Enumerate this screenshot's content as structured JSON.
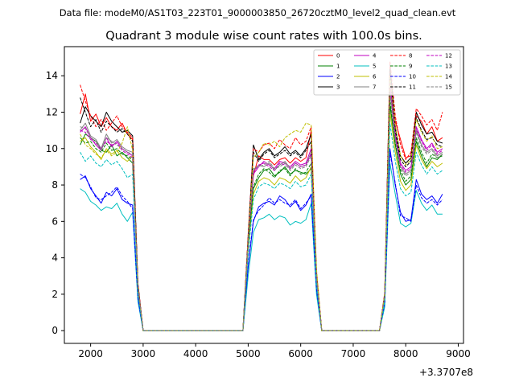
{
  "chart_data": {
    "type": "line",
    "suptitle": "Data file: modeM0/AS1T03_223T01_9000003850_26720cztM0_level2_quad_clean.evt",
    "title": "Quadrant 3 module wise count rates with 100.0s bins.",
    "xlabel": "",
    "ylabel": "",
    "x_offset_label": "+3.3707e8",
    "xlim": [
      1500,
      9100
    ],
    "ylim": [
      -0.7,
      15.6
    ],
    "xticks": [
      2000,
      3000,
      4000,
      5000,
      6000,
      7000,
      8000,
      9000
    ],
    "xtick_labels": [
      "2000",
      "3000",
      "4000",
      "5000",
      "6000",
      "7000",
      "8000",
      "9000"
    ],
    "yticks": [
      0,
      2,
      4,
      6,
      8,
      10,
      12,
      14
    ],
    "ytick_labels": [
      "0",
      "2",
      "4",
      "6",
      "8",
      "10",
      "12",
      "14"
    ],
    "legend_location": "top-right",
    "legend_columns": 4,
    "x": [
      1800,
      1900,
      2000,
      2100,
      2200,
      2300,
      2400,
      2500,
      2600,
      2700,
      2800,
      2900,
      3000,
      3100,
      3200,
      3300,
      3400,
      3500,
      3600,
      3700,
      3800,
      3900,
      4000,
      4100,
      4200,
      4300,
      4400,
      4500,
      4600,
      4700,
      4800,
      4900,
      5000,
      5100,
      5200,
      5300,
      5400,
      5500,
      5600,
      5700,
      5800,
      5900,
      6000,
      6100,
      6200,
      6300,
      6400,
      6500,
      6600,
      6700,
      6800,
      6900,
      7000,
      7100,
      7200,
      7300,
      7400,
      7500,
      7600,
      7700,
      7800,
      7900,
      8000,
      8100,
      8200,
      8300,
      8400,
      8500,
      8600,
      8700
    ],
    "series": [
      {
        "name": "0",
        "color": "#ff0000",
        "dash": "solid",
        "values": [
          11.9,
          13.0,
          11.5,
          11.9,
          11.2,
          11.7,
          11.2,
          11.0,
          11.4,
          10.8,
          10.5,
          2.5,
          0,
          0,
          0,
          0,
          0,
          0,
          0,
          0,
          0,
          0,
          0,
          0,
          0,
          0,
          0,
          0,
          0,
          0,
          0,
          0,
          5.0,
          8.5,
          9.6,
          9.4,
          9.4,
          9.1,
          9.4,
          9.5,
          9.2,
          9.5,
          9.3,
          9.5,
          11.0,
          3.2,
          0,
          0,
          0,
          0,
          0,
          0,
          0,
          0,
          0,
          0,
          0,
          0,
          2.0,
          13.5,
          11.5,
          10.5,
          9.5,
          9.6,
          11.8,
          11.5,
          10.8,
          11.2,
          10.4,
          10.6
        ]
      },
      {
        "name": "1",
        "color": "#008000",
        "dash": "solid",
        "values": [
          10.2,
          10.8,
          10.6,
          10.4,
          9.9,
          9.8,
          10.2,
          9.6,
          9.8,
          9.5,
          9.2,
          2.2,
          0,
          0,
          0,
          0,
          0,
          0,
          0,
          0,
          0,
          0,
          0,
          0,
          0,
          0,
          0,
          0,
          0,
          0,
          0,
          0,
          4.6,
          7.8,
          8.4,
          8.8,
          8.9,
          8.5,
          8.7,
          9.0,
          8.6,
          8.8,
          8.7,
          8.6,
          8.9,
          2.8,
          0,
          0,
          0,
          0,
          0,
          0,
          0,
          0,
          0,
          0,
          0,
          0,
          1.8,
          12.4,
          10.2,
          8.6,
          8.0,
          8.3,
          10.4,
          9.6,
          9.0,
          9.5,
          9.4,
          9.7
        ]
      },
      {
        "name": "2",
        "color": "#0000ff",
        "dash": "solid",
        "values": [
          8.3,
          8.5,
          7.8,
          7.4,
          7.0,
          7.6,
          7.4,
          7.8,
          7.2,
          7.0,
          6.9,
          1.8,
          0,
          0,
          0,
          0,
          0,
          0,
          0,
          0,
          0,
          0,
          0,
          0,
          0,
          0,
          0,
          0,
          0,
          0,
          0,
          0,
          3.5,
          6.0,
          6.8,
          7.0,
          7.1,
          6.9,
          7.4,
          7.2,
          6.8,
          7.1,
          6.6,
          6.9,
          7.5,
          2.3,
          0,
          0,
          0,
          0,
          0,
          0,
          0,
          0,
          0,
          0,
          0,
          0,
          1.5,
          10.0,
          8.0,
          6.5,
          6.0,
          6.1,
          8.3,
          7.5,
          7.2,
          7.4,
          7.0,
          7.5
        ]
      },
      {
        "name": "3",
        "color": "#000000",
        "dash": "solid",
        "values": [
          11.4,
          12.3,
          11.8,
          11.5,
          11.2,
          12.0,
          11.5,
          11.2,
          10.9,
          11.0,
          10.7,
          2.6,
          0,
          0,
          0,
          0,
          0,
          0,
          0,
          0,
          0,
          0,
          0,
          0,
          0,
          0,
          0,
          0,
          0,
          0,
          0,
          0,
          5.2,
          10.2,
          9.4,
          9.8,
          10.0,
          9.6,
          9.8,
          10.1,
          9.7,
          9.9,
          9.6,
          10.0,
          10.8,
          3.1,
          0,
          0,
          0,
          0,
          0,
          0,
          0,
          0,
          0,
          0,
          0,
          0,
          2.0,
          14.6,
          11.2,
          9.6,
          9.2,
          9.5,
          12.0,
          11.3,
          10.8,
          10.9,
          10.4,
          10.3
        ]
      },
      {
        "name": "4",
        "color": "#c000c0",
        "dash": "solid",
        "values": [
          10.9,
          11.2,
          10.6,
          10.2,
          9.9,
          10.6,
          10.1,
          10.4,
          10.0,
          9.8,
          9.6,
          2.4,
          0,
          0,
          0,
          0,
          0,
          0,
          0,
          0,
          0,
          0,
          0,
          0,
          0,
          0,
          0,
          0,
          0,
          0,
          0,
          0,
          4.9,
          8.6,
          9.0,
          9.3,
          9.1,
          8.9,
          9.3,
          9.2,
          9.0,
          9.3,
          9.1,
          9.2,
          10.0,
          3.0,
          0,
          0,
          0,
          0,
          0,
          0,
          0,
          0,
          0,
          0,
          0,
          0,
          1.9,
          13.8,
          10.8,
          9.2,
          8.8,
          9.0,
          11.2,
          10.5,
          10.0,
          10.3,
          9.8,
          10.0
        ]
      },
      {
        "name": "5",
        "color": "#00bfbf",
        "dash": "solid",
        "values": [
          7.8,
          7.6,
          7.1,
          6.9,
          6.6,
          6.8,
          6.7,
          7.0,
          6.4,
          6.0,
          6.5,
          1.6,
          0,
          0,
          0,
          0,
          0,
          0,
          0,
          0,
          0,
          0,
          0,
          0,
          0,
          0,
          0,
          0,
          0,
          0,
          0,
          0,
          3.0,
          5.4,
          6.1,
          6.2,
          6.4,
          6.1,
          6.3,
          6.2,
          5.8,
          6.0,
          5.9,
          6.1,
          7.0,
          2.0,
          0,
          0,
          0,
          0,
          0,
          0,
          0,
          0,
          0,
          0,
          0,
          0,
          1.3,
          9.2,
          7.5,
          5.9,
          5.7,
          5.9,
          7.7,
          7.0,
          6.6,
          6.9,
          6.4,
          6.4
        ]
      },
      {
        "name": "6",
        "color": "#bfbf00",
        "dash": "solid",
        "values": [
          10.4,
          10.6,
          10.1,
          9.8,
          9.4,
          10.0,
          9.7,
          9.9,
          9.5,
          9.3,
          9.6,
          2.3,
          0,
          0,
          0,
          0,
          0,
          0,
          0,
          0,
          0,
          0,
          0,
          0,
          0,
          0,
          0,
          0,
          0,
          0,
          0,
          0,
          4.5,
          7.5,
          8.2,
          8.4,
          8.3,
          8.0,
          8.4,
          8.3,
          8.1,
          8.5,
          8.2,
          8.4,
          9.0,
          2.8,
          0,
          0,
          0,
          0,
          0,
          0,
          0,
          0,
          0,
          0,
          0,
          0,
          1.7,
          12.0,
          9.8,
          8.2,
          7.7,
          8.0,
          10.2,
          9.4,
          8.9,
          9.3,
          9.0,
          9.2
        ]
      },
      {
        "name": "7",
        "color": "#808080",
        "dash": "solid",
        "values": [
          11.0,
          11.4,
          10.7,
          10.5,
          10.0,
          10.8,
          10.3,
          10.5,
          10.1,
          9.9,
          9.8,
          2.4,
          0,
          0,
          0,
          0,
          0,
          0,
          0,
          0,
          0,
          0,
          0,
          0,
          0,
          0,
          0,
          0,
          0,
          0,
          0,
          0,
          4.8,
          8.8,
          9.1,
          9.0,
          9.2,
          8.8,
          9.1,
          9.3,
          8.9,
          9.2,
          9.0,
          9.1,
          9.8,
          2.9,
          0,
          0,
          0,
          0,
          0,
          0,
          0,
          0,
          0,
          0,
          0,
          0,
          1.9,
          13.2,
          10.6,
          9.0,
          8.6,
          8.8,
          11.0,
          10.2,
          9.8,
          10.0,
          9.6,
          9.8
        ]
      },
      {
        "name": "8",
        "color": "#ff0000",
        "dash": "dashed",
        "values": [
          13.5,
          12.6,
          11.8,
          11.2,
          11.6,
          11.0,
          11.4,
          11.8,
          11.2,
          10.9,
          10.6,
          2.6,
          0,
          0,
          0,
          0,
          0,
          0,
          0,
          0,
          0,
          0,
          0,
          0,
          0,
          0,
          0,
          0,
          0,
          0,
          0,
          0,
          5.3,
          10.0,
          9.8,
          10.2,
          10.3,
          10.0,
          10.5,
          10.2,
          10.0,
          10.6,
          10.2,
          10.4,
          11.2,
          3.3,
          0,
          0,
          0,
          0,
          0,
          0,
          0,
          0,
          0,
          0,
          0,
          0,
          2.1,
          14.8,
          11.8,
          10.2,
          9.4,
          9.8,
          12.2,
          11.8,
          11.3,
          11.6,
          11.0,
          12.0
        ]
      },
      {
        "name": "9",
        "color": "#008000",
        "dash": "dashed",
        "values": [
          10.6,
          10.3,
          10.4,
          10.0,
          9.8,
          10.3,
          9.9,
          10.0,
          9.7,
          9.6,
          9.4,
          2.3,
          0,
          0,
          0,
          0,
          0,
          0,
          0,
          0,
          0,
          0,
          0,
          0,
          0,
          0,
          0,
          0,
          0,
          0,
          0,
          0,
          4.6,
          7.9,
          8.6,
          8.9,
          8.7,
          8.4,
          8.8,
          8.9,
          8.5,
          8.9,
          8.6,
          8.7,
          9.2,
          2.8,
          0,
          0,
          0,
          0,
          0,
          0,
          0,
          0,
          0,
          0,
          0,
          0,
          1.8,
          12.6,
          10.3,
          8.8,
          8.2,
          8.5,
          10.6,
          9.8,
          9.2,
          9.7,
          9.5,
          9.6
        ]
      },
      {
        "name": "10",
        "color": "#0000ff",
        "dash": "dashed",
        "values": [
          8.6,
          8.4,
          7.9,
          7.3,
          7.2,
          7.4,
          7.6,
          7.9,
          7.4,
          7.1,
          6.7,
          1.8,
          0,
          0,
          0,
          0,
          0,
          0,
          0,
          0,
          0,
          0,
          0,
          0,
          0,
          0,
          0,
          0,
          0,
          0,
          0,
          0,
          3.6,
          6.1,
          6.6,
          6.9,
          7.3,
          7.0,
          7.2,
          7.0,
          6.9,
          7.2,
          6.7,
          7.0,
          7.4,
          2.3,
          0,
          0,
          0,
          0,
          0,
          0,
          0,
          0,
          0,
          0,
          0,
          0,
          1.5,
          9.8,
          8.1,
          6.3,
          6.2,
          6.0,
          8.0,
          7.3,
          7.0,
          7.2,
          6.9,
          7.2
        ]
      },
      {
        "name": "11",
        "color": "#000000",
        "dash": "dashed",
        "values": [
          12.8,
          12.0,
          11.2,
          11.6,
          10.9,
          11.5,
          11.2,
          10.9,
          11.1,
          10.8,
          10.4,
          2.5,
          0,
          0,
          0,
          0,
          0,
          0,
          0,
          0,
          0,
          0,
          0,
          0,
          0,
          0,
          0,
          0,
          0,
          0,
          0,
          0,
          5.1,
          9.8,
          9.3,
          9.7,
          9.9,
          9.5,
          9.7,
          9.9,
          9.6,
          9.8,
          9.5,
          9.9,
          10.4,
          3.1,
          0,
          0,
          0,
          0,
          0,
          0,
          0,
          0,
          0,
          0,
          0,
          0,
          2.0,
          14.3,
          11.0,
          9.4,
          9.0,
          9.3,
          11.7,
          11.0,
          10.5,
          10.6,
          10.2,
          10.1
        ]
      },
      {
        "name": "12",
        "color": "#c000c0",
        "dash": "dashed",
        "values": [
          11.0,
          10.9,
          10.5,
          10.3,
          10.0,
          10.4,
          10.2,
          10.3,
          9.9,
          9.7,
          9.5,
          2.4,
          0,
          0,
          0,
          0,
          0,
          0,
          0,
          0,
          0,
          0,
          0,
          0,
          0,
          0,
          0,
          0,
          0,
          0,
          0,
          0,
          4.9,
          8.7,
          9.1,
          9.2,
          9.0,
          8.8,
          9.2,
          9.1,
          8.9,
          9.2,
          9.0,
          9.1,
          9.7,
          3.0,
          0,
          0,
          0,
          0,
          0,
          0,
          0,
          0,
          0,
          0,
          0,
          0,
          1.9,
          13.6,
          10.7,
          9.1,
          8.7,
          8.9,
          11.1,
          10.4,
          9.9,
          10.2,
          9.7,
          9.9
        ]
      },
      {
        "name": "13",
        "color": "#00bfbf",
        "dash": "dashed",
        "values": [
          9.8,
          9.3,
          9.6,
          9.2,
          9.0,
          9.4,
          9.1,
          9.3,
          8.9,
          8.4,
          8.6,
          2.1,
          0,
          0,
          0,
          0,
          0,
          0,
          0,
          0,
          0,
          0,
          0,
          0,
          0,
          0,
          0,
          0,
          0,
          0,
          0,
          0,
          4.2,
          7.2,
          7.9,
          8.1,
          8.0,
          7.8,
          8.1,
          8.0,
          7.8,
          8.2,
          7.9,
          8.0,
          8.6,
          2.6,
          0,
          0,
          0,
          0,
          0,
          0,
          0,
          0,
          0,
          0,
          0,
          0,
          1.6,
          11.4,
          9.3,
          7.8,
          7.4,
          7.6,
          9.8,
          9.1,
          8.6,
          9.0,
          8.6,
          8.8
        ]
      },
      {
        "name": "14",
        "color": "#bfbf00",
        "dash": "dashed",
        "values": [
          10.8,
          10.2,
          10.0,
          9.7,
          9.5,
          9.9,
          9.6,
          9.8,
          10.3,
          11.2,
          9.9,
          2.4,
          0,
          0,
          0,
          0,
          0,
          0,
          0,
          0,
          0,
          0,
          0,
          0,
          0,
          0,
          0,
          0,
          0,
          0,
          0,
          0,
          5.0,
          9.5,
          9.8,
          10.3,
          10.2,
          10.4,
          10.1,
          10.6,
          10.8,
          11.0,
          10.9,
          11.4,
          11.3,
          3.4,
          0,
          0,
          0,
          0,
          0,
          0,
          0,
          0,
          0,
          0,
          0,
          0,
          2.0,
          13.9,
          11.3,
          9.6,
          9.1,
          9.4,
          11.6,
          10.9,
          10.4,
          10.7,
          10.0,
          10.1
        ]
      },
      {
        "name": "15",
        "color": "#808080",
        "dash": "dashed",
        "values": [
          11.2,
          11.1,
          10.6,
          10.4,
          9.9,
          10.6,
          10.4,
          10.2,
          10.0,
          9.8,
          9.7,
          2.4,
          0,
          0,
          0,
          0,
          0,
          0,
          0,
          0,
          0,
          0,
          0,
          0,
          0,
          0,
          0,
          0,
          0,
          0,
          0,
          0,
          4.8,
          8.9,
          9.0,
          9.1,
          9.3,
          8.9,
          9.0,
          9.2,
          8.8,
          9.1,
          8.9,
          9.0,
          9.6,
          2.9,
          0,
          0,
          0,
          0,
          0,
          0,
          0,
          0,
          0,
          0,
          0,
          0,
          1.9,
          13.0,
          10.5,
          8.9,
          8.5,
          8.7,
          10.9,
          10.1,
          9.7,
          9.9,
          9.5,
          9.7
        ]
      }
    ]
  }
}
